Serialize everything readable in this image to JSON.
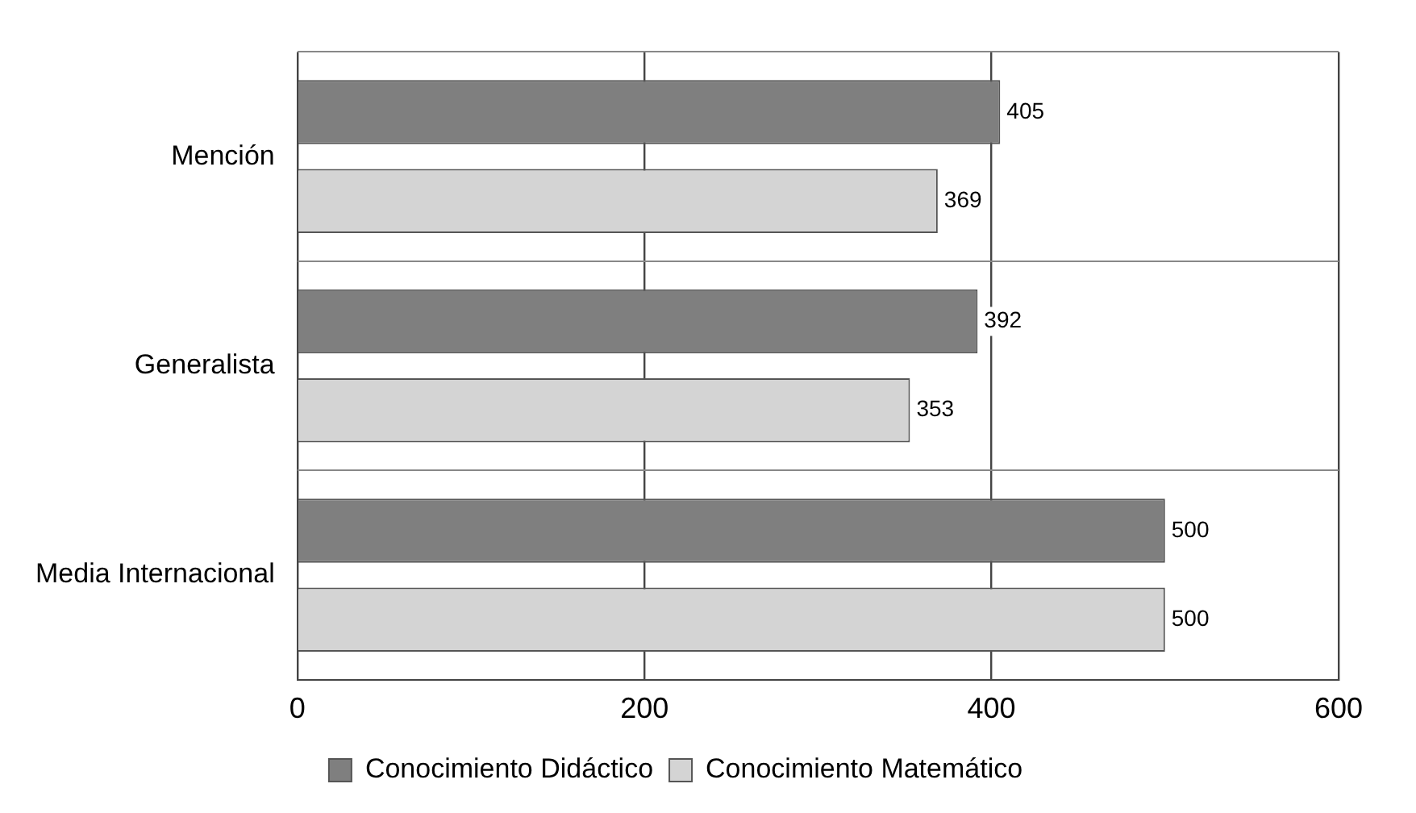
{
  "chart_data": {
    "type": "bar",
    "orientation": "horizontal",
    "categories": [
      "Mención",
      "Generalista",
      "Media Internacional"
    ],
    "series": [
      {
        "name": "Conocimiento Didáctico",
        "color": "#7f7f7f",
        "values": [
          405,
          392,
          500
        ]
      },
      {
        "name": "Conocimiento Matemático",
        "color": "#d4d4d4",
        "values": [
          369,
          353,
          500
        ]
      }
    ],
    "xlim": [
      0,
      600
    ],
    "xticks": [
      0,
      200,
      400,
      600
    ],
    "grid": true,
    "legend": "bottom",
    "data_labels": true
  }
}
